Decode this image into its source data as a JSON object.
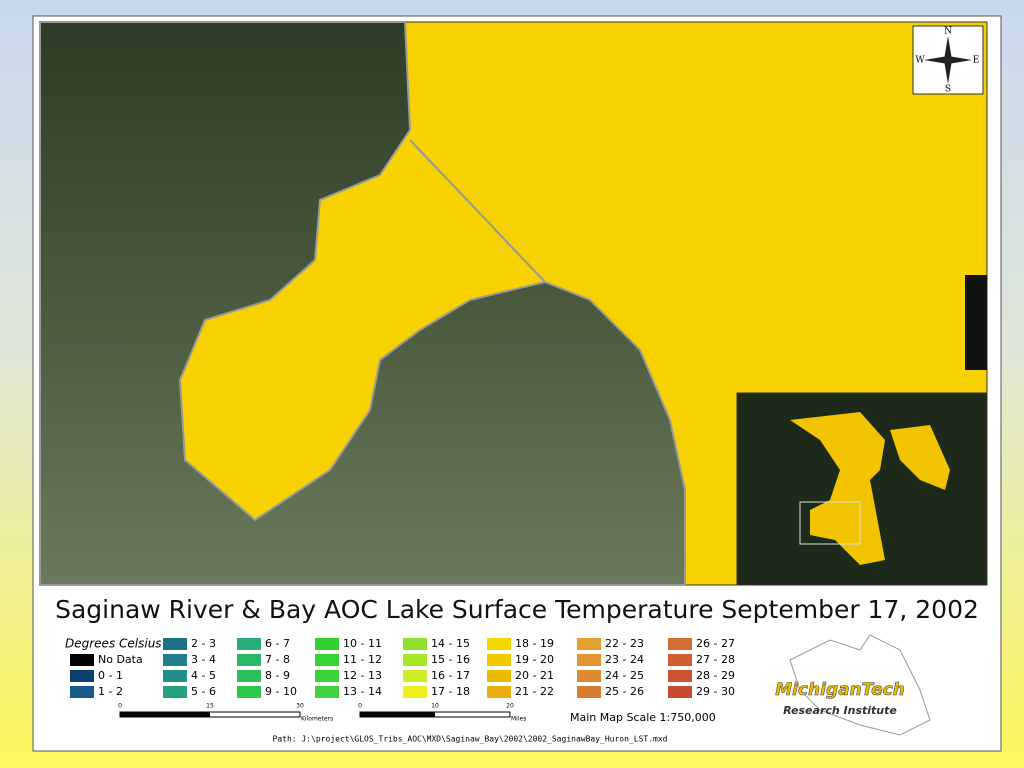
{
  "title": "Saginaw River & Bay AOC Lake Surface Temperature September 17, 2002",
  "compass": {
    "n": "N",
    "s": "S",
    "e": "E",
    "w": "W"
  },
  "legend": {
    "title": "Degrees Celsius",
    "columns": [
      [
        {
          "label": "No Data",
          "color": "#000000"
        },
        {
          "label": "0 - 1",
          "color": "#0e3f6e"
        },
        {
          "label": "1 - 2",
          "color": "#1a5a8a"
        }
      ],
      [
        {
          "label": "2 - 3",
          "color": "#1f6f8b"
        },
        {
          "label": "3 - 4",
          "color": "#20808a"
        },
        {
          "label": "4 - 5",
          "color": "#229088"
        },
        {
          "label": "5 - 6",
          "color": "#25a080"
        }
      ],
      [
        {
          "label": "6 - 7",
          "color": "#27ae7a"
        },
        {
          "label": "7 - 8",
          "color": "#29b86a"
        },
        {
          "label": "8 - 9",
          "color": "#2bc05a"
        },
        {
          "label": "9 - 10",
          "color": "#2dc84a"
        }
      ],
      [
        {
          "label": "10 - 11",
          "color": "#30d030"
        },
        {
          "label": "11 - 12",
          "color": "#34d434"
        },
        {
          "label": "12 - 13",
          "color": "#3ad43a"
        },
        {
          "label": "13 - 14",
          "color": "#45d040"
        }
      ],
      [
        {
          "label": "14 - 15",
          "color": "#8ee030"
        },
        {
          "label": "15 - 16",
          "color": "#a8e628"
        },
        {
          "label": "16 - 17",
          "color": "#d0ec28"
        },
        {
          "label": "17 - 18",
          "color": "#f0f020"
        }
      ],
      [
        {
          "label": "18 - 19",
          "color": "#f6d800"
        },
        {
          "label": "19 - 20",
          "color": "#f2c800"
        },
        {
          "label": "20 - 21",
          "color": "#eebb00"
        },
        {
          "label": "21 - 22",
          "color": "#eaae10"
        }
      ],
      [
        {
          "label": "22 - 23",
          "color": "#e6a030"
        },
        {
          "label": "23 - 24",
          "color": "#e29430"
        },
        {
          "label": "24 - 25",
          "color": "#de8830"
        },
        {
          "label": "25 - 26",
          "color": "#da7c30"
        }
      ],
      [
        {
          "label": "26 - 27",
          "color": "#d46e30"
        },
        {
          "label": "27 - 28",
          "color": "#d06030"
        },
        {
          "label": "28 - 29",
          "color": "#cc5530"
        },
        {
          "label": "29 - 30",
          "color": "#c84a30"
        }
      ]
    ]
  },
  "scale_km": {
    "ticks": [
      "0",
      "15",
      "30"
    ],
    "unit": "Kilometers"
  },
  "scale_mi": {
    "ticks": [
      "0",
      "10",
      "20"
    ],
    "unit": "Miles"
  },
  "map_scale": "Main Map Scale 1:750,000",
  "logo": {
    "name": "MichiganTech",
    "subtitle": "Research Institute"
  },
  "path": "Path: J:\\project\\GLOS_Tribs_AOC\\MXD\\Saginaw_Bay\\2002\\2002_SaginawBay_Huron_LST.mxd"
}
